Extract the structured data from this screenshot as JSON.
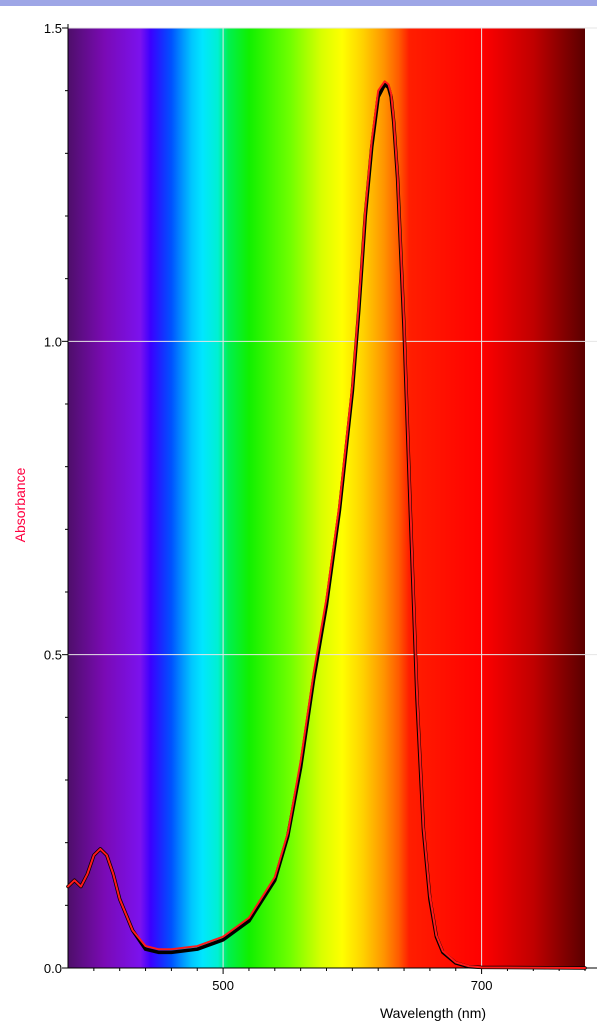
{
  "chart_data": {
    "type": "line",
    "title": "",
    "xlabel": "Wavelength (nm)",
    "ylabel": "Absorbance",
    "xlim": [
      380,
      780
    ],
    "ylim": [
      0,
      1.5
    ],
    "x_ticks": [
      500,
      700
    ],
    "x_tick_labels": [
      "500",
      "700"
    ],
    "y_ticks": [
      0,
      0.5,
      1.0,
      1.5
    ],
    "y_tick_labels": [
      "0.0",
      "0.5",
      "1.0",
      "1.5"
    ],
    "grid": true,
    "background": "visible spectrum gradient",
    "colors": {
      "ylabel": "#ff0040",
      "series_red": "#ff1a1a",
      "series_black": "#000000",
      "grid": "#e6e6e6",
      "top_border": "#9ea6e6"
    },
    "series": [
      {
        "color": "#000000",
        "x": [
          380,
          385,
          390,
          395,
          400,
          405,
          410,
          415,
          420,
          430,
          440,
          450,
          460,
          480,
          500,
          520,
          540,
          550,
          560,
          570,
          580,
          590,
          600,
          605,
          610,
          615,
          620,
          625,
          628,
          630,
          632,
          635,
          640,
          645,
          650,
          655,
          660,
          665,
          670,
          680,
          690,
          700,
          780
        ],
        "y": [
          0.13,
          0.14,
          0.13,
          0.15,
          0.18,
          0.19,
          0.18,
          0.15,
          0.11,
          0.06,
          0.03,
          0.025,
          0.025,
          0.03,
          0.045,
          0.075,
          0.14,
          0.21,
          0.32,
          0.46,
          0.58,
          0.73,
          0.92,
          1.05,
          1.2,
          1.31,
          1.39,
          1.41,
          1.405,
          1.39,
          1.35,
          1.26,
          1.02,
          0.72,
          0.43,
          0.22,
          0.11,
          0.05,
          0.025,
          0.008,
          0.002,
          0.001,
          0.0
        ]
      },
      {
        "color": "#ff1a1a",
        "x": [
          380,
          385,
          390,
          395,
          400,
          405,
          410,
          415,
          420,
          430,
          440,
          450,
          460,
          480,
          500,
          520,
          540,
          550,
          560,
          570,
          580,
          590,
          600,
          605,
          610,
          615,
          620,
          625,
          628,
          630,
          632,
          635,
          640,
          645,
          650,
          655,
          660,
          665,
          670,
          680,
          690,
          700,
          780
        ],
        "y": [
          0.13,
          0.14,
          0.13,
          0.15,
          0.18,
          0.19,
          0.18,
          0.15,
          0.11,
          0.06,
          0.035,
          0.03,
          0.03,
          0.035,
          0.05,
          0.08,
          0.145,
          0.215,
          0.33,
          0.47,
          0.59,
          0.74,
          0.93,
          1.06,
          1.21,
          1.32,
          1.4,
          1.415,
          1.41,
          1.395,
          1.355,
          1.265,
          1.03,
          0.73,
          0.44,
          0.225,
          0.115,
          0.052,
          0.027,
          0.009,
          0.003,
          0.001,
          0.0
        ]
      }
    ]
  }
}
